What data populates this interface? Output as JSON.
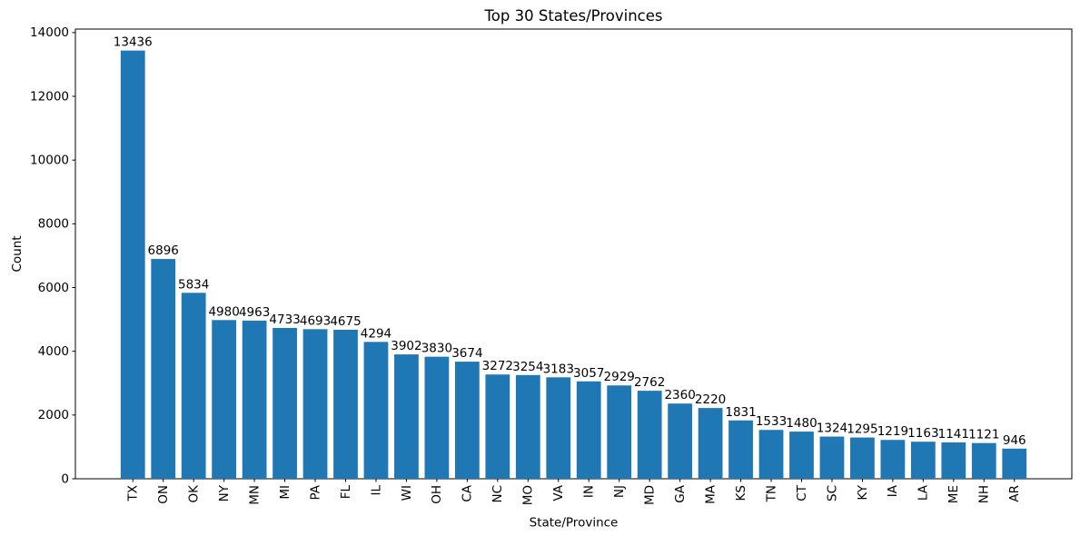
{
  "chart_data": {
    "type": "bar",
    "title": "Top 30 States/Provinces",
    "xlabel": "State/Province",
    "ylabel": "Count",
    "categories": [
      "TX",
      "ON",
      "OK",
      "NY",
      "MN",
      "MI",
      "PA",
      "FL",
      "IL",
      "WI",
      "OH",
      "CA",
      "NC",
      "MO",
      "VA",
      "IN",
      "NJ",
      "MD",
      "GA",
      "MA",
      "KS",
      "TN",
      "CT",
      "SC",
      "KY",
      "IA",
      "LA",
      "ME",
      "NH",
      "AR"
    ],
    "values": [
      13436,
      6896,
      5834,
      4980,
      4963,
      4733,
      4693,
      4675,
      4294,
      3902,
      3830,
      3674,
      3272,
      3254,
      3183,
      3057,
      2929,
      2762,
      2360,
      2220,
      1831,
      1533,
      1480,
      1324,
      1295,
      1219,
      1163,
      1141,
      1121,
      946
    ],
    "value_labels_shown": true,
    "yticks": [
      0,
      2000,
      4000,
      6000,
      8000,
      10000,
      12000,
      14000
    ],
    "ylim": [
      0,
      14110
    ],
    "x_tick_rotation_deg": 90,
    "grid": false,
    "legend": "none",
    "bar_color": "#1f77b4",
    "axis_color": "#000000",
    "text_color": "#000000",
    "background_color": "#ffffff"
  }
}
